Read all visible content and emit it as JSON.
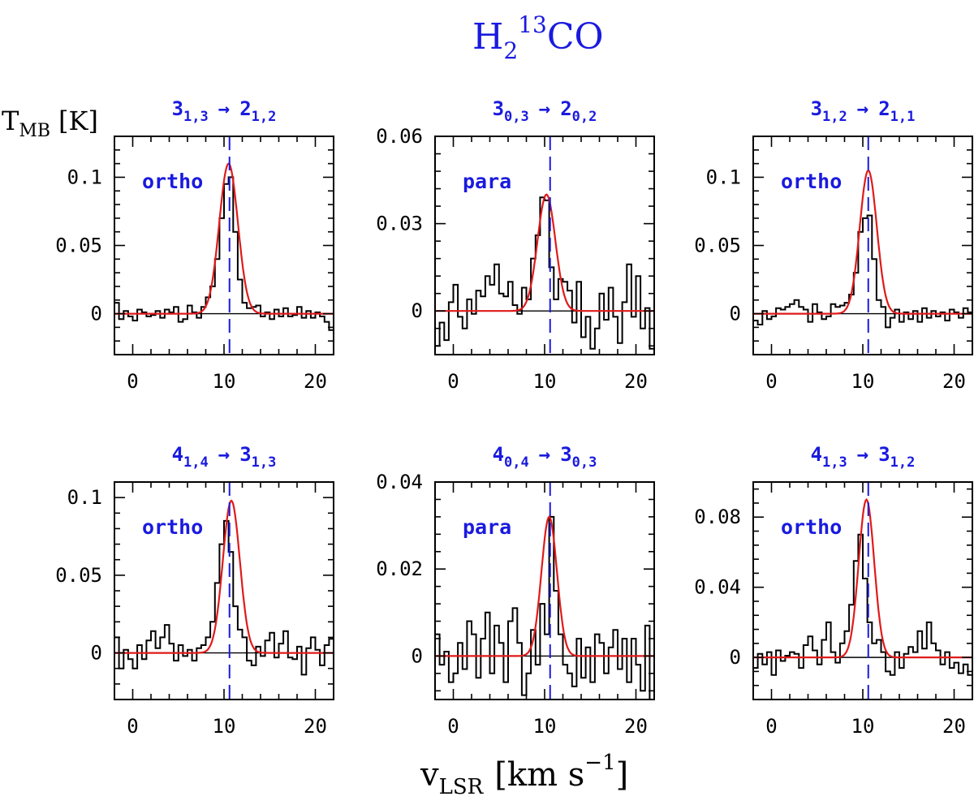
{
  "title": {
    "main": "H",
    "sub": "2",
    "sup": "13",
    "tail": "CO"
  },
  "ylabel": {
    "main": "T",
    "sub": "MB",
    "unit": "[K]"
  },
  "xlabel": {
    "main": "v",
    "sub": "LSR",
    "unit_a": "[km s",
    "sup": "−1",
    "unit_b": "]"
  },
  "colors": {
    "accent": "#1a1adf",
    "fit": "#e01a1a",
    "spectrum": "#000000"
  },
  "chart_data": [
    {
      "type": "line",
      "panel": "top-left",
      "transition": {
        "upper": "3",
        "upper_sub": "1,3",
        "arrow": "→",
        "lower": "2",
        "lower_sub": "1,2"
      },
      "species": "ortho",
      "xlim": [
        -2,
        22
      ],
      "ylim": [
        -0.03,
        0.13
      ],
      "xticks": [
        0,
        10,
        20
      ],
      "xtick_labels": [
        "0",
        "10",
        "20"
      ],
      "yticks": [
        0,
        0.05,
        0.1
      ],
      "ytick_labels": [
        "0",
        "0.05",
        "0.1"
      ],
      "vline": 10.6,
      "gaussian": {
        "amplitude": 0.11,
        "center": 10.5,
        "fwhm": 2.4
      },
      "x": [
        -2,
        -1.5,
        -1,
        -0.5,
        0,
        0.5,
        1,
        1.5,
        2,
        2.5,
        3,
        3.5,
        4,
        4.5,
        5,
        5.5,
        6,
        6.5,
        7,
        7.5,
        8,
        8.5,
        9,
        9.5,
        10,
        10.5,
        11,
        11.5,
        12,
        12.5,
        13,
        13.5,
        14,
        14.5,
        15,
        15.5,
        16,
        16.5,
        17,
        17.5,
        18,
        18.5,
        19,
        19.5,
        20,
        20.5,
        21,
        21.5
      ],
      "y": [
        0.008,
        -0.004,
        0.002,
        -0.002,
        -0.005,
        0.003,
        0.001,
        -0.002,
        -0.001,
        0.002,
        -0.003,
        0.003,
        0.001,
        0.005,
        -0.006,
        -0.004,
        0.006,
        0.001,
        -0.003,
        0.005,
        0.012,
        0.02,
        0.04,
        0.07,
        0.095,
        0.1,
        0.06,
        0.025,
        0.008,
        0.004,
        0.005,
        0.006,
        -0.002,
        0.001,
        -0.004,
        0.003,
        -0.002,
        0.004,
        -0.002,
        -0.001,
        0.005,
        -0.003,
        0.002,
        -0.003,
        0.001,
        -0.002,
        -0.006,
        -0.012
      ]
    },
    {
      "type": "line",
      "panel": "top-center",
      "transition": {
        "upper": "3",
        "upper_sub": "0,3",
        "arrow": "→",
        "lower": "2",
        "lower_sub": "0,2"
      },
      "species": "para",
      "xlim": [
        -2,
        22
      ],
      "ylim": [
        -0.015,
        0.06
      ],
      "xticks": [
        0,
        10,
        20
      ],
      "xtick_labels": [
        "0",
        "10",
        "20"
      ],
      "yticks": [
        0,
        0.03,
        0.06
      ],
      "ytick_labels": [
        "0",
        "0.03",
        "0.06"
      ],
      "vline": 10.6,
      "gaussian": {
        "amplitude": 0.04,
        "center": 10.2,
        "fwhm": 2.3
      },
      "x": [
        -2,
        -1.5,
        -1,
        -0.5,
        0,
        0.5,
        1,
        1.5,
        2,
        2.5,
        3,
        3.5,
        4,
        4.5,
        5,
        5.5,
        6,
        6.5,
        7,
        7.5,
        8,
        8.5,
        9,
        9.5,
        10,
        10.5,
        11,
        11.5,
        12,
        12.5,
        13,
        13.5,
        14,
        14.5,
        15,
        15.5,
        16,
        16.5,
        17,
        17.5,
        18,
        18.5,
        19,
        19.5,
        20,
        20.5,
        21,
        21.5
      ],
      "y": [
        -0.012,
        -0.004,
        -0.01,
        0.003,
        0.009,
        -0.002,
        -0.006,
        0.004,
        -0.001,
        0.007,
        0.005,
        0.012,
        0.009,
        0.016,
        0.006,
        0.005,
        0.01,
        0.002,
        -0.001,
        0.008,
        0.004,
        0.018,
        0.026,
        0.039,
        0.038,
        0.015,
        0.004,
        0.011,
        0.01,
        0.007,
        -0.004,
        0.01,
        -0.009,
        -0.002,
        -0.013,
        -0.006,
        0.006,
        -0.003,
        0.008,
        -0.002,
        -0.011,
        0.003,
        0.016,
        -0.002,
        0.012,
        -0.006,
        0.001,
        -0.013
      ]
    },
    {
      "type": "line",
      "panel": "top-right",
      "transition": {
        "upper": "3",
        "upper_sub": "1,2",
        "arrow": "→",
        "lower": "2",
        "lower_sub": "1,1"
      },
      "species": "ortho",
      "xlim": [
        -2,
        22
      ],
      "ylim": [
        -0.03,
        0.13
      ],
      "xticks": [
        0,
        10,
        20
      ],
      "xtick_labels": [
        "0",
        "10",
        "20"
      ],
      "yticks": [
        0,
        0.05,
        0.1
      ],
      "ytick_labels": [
        "0",
        "0.05",
        "0.1"
      ],
      "vline": 10.6,
      "gaussian": {
        "amplitude": 0.105,
        "center": 10.6,
        "fwhm": 2.2
      },
      "x": [
        -2,
        -1.5,
        -1,
        -0.5,
        0,
        0.5,
        1,
        1.5,
        2,
        2.5,
        3,
        3.5,
        4,
        4.5,
        5,
        5.5,
        6,
        6.5,
        7,
        7.5,
        8,
        8.5,
        9,
        9.5,
        10,
        10.5,
        11,
        11.5,
        12,
        12.5,
        13,
        13.5,
        14,
        14.5,
        15,
        15.5,
        16,
        16.5,
        17,
        17.5,
        18,
        18.5,
        19,
        19.5,
        20,
        20.5,
        21,
        21.5
      ],
      "y": [
        -0.005,
        -0.008,
        0.002,
        -0.004,
        -0.002,
        0.004,
        0.003,
        0.005,
        0.007,
        0.01,
        0.005,
        0.003,
        -0.006,
        0.007,
        0.001,
        -0.004,
        -0.002,
        0.007,
        0.005,
        0.006,
        0.008,
        0.014,
        0.03,
        0.06,
        0.07,
        0.072,
        0.04,
        0.01,
        0.005,
        -0.01,
        -0.003,
        0.003,
        -0.006,
        0.001,
        -0.004,
        0.002,
        -0.006,
        0.004,
        -0.003,
        0.002,
        -0.002,
        0.001,
        -0.005,
        0.003,
        0.001,
        -0.003,
        0.004,
        0.001
      ]
    },
    {
      "type": "line",
      "panel": "bottom-left",
      "transition": {
        "upper": "4",
        "upper_sub": "1,4",
        "arrow": "→",
        "lower": "3",
        "lower_sub": "1,3"
      },
      "species": "ortho",
      "xlim": [
        -2,
        22
      ],
      "ylim": [
        -0.03,
        0.11
      ],
      "xticks": [
        0,
        10,
        20
      ],
      "xtick_labels": [
        "0",
        "10",
        "20"
      ],
      "yticks": [
        0,
        0.05,
        0.1
      ],
      "ytick_labels": [
        "0",
        "0.05",
        "0.1"
      ],
      "vline": 10.6,
      "gaussian": {
        "amplitude": 0.098,
        "center": 10.8,
        "fwhm": 2.2
      },
      "x": [
        -2,
        -1.5,
        -1,
        -0.5,
        0,
        0.5,
        1,
        1.5,
        2,
        2.5,
        3,
        3.5,
        4,
        4.5,
        5,
        5.5,
        6,
        6.5,
        7,
        7.5,
        8,
        8.5,
        9,
        9.5,
        10,
        10.5,
        11,
        11.5,
        12,
        12.5,
        13,
        13.5,
        14,
        14.5,
        15,
        15.5,
        16,
        16.5,
        17,
        17.5,
        18,
        18.5,
        19,
        19.5,
        20,
        20.5,
        21,
        21.5
      ],
      "y": [
        0.01,
        -0.01,
        0.002,
        -0.004,
        -0.01,
        0.005,
        -0.004,
        0.008,
        0.014,
        0.003,
        0.01,
        0.018,
        0.006,
        -0.005,
        0.005,
        -0.002,
        0.002,
        -0.005,
        0.003,
        0.005,
        0.01,
        0.02,
        0.045,
        0.07,
        0.085,
        0.065,
        0.03,
        0.015,
        0.01,
        -0.005,
        -0.008,
        0.004,
        -0.002,
        0.008,
        0.013,
        -0.003,
        0.006,
        0.014,
        -0.003,
        -0.004,
        0.004,
        -0.014,
        0.003,
        0.01,
        0.002,
        -0.008,
        0.005,
        0.009
      ]
    },
    {
      "type": "line",
      "panel": "bottom-center",
      "transition": {
        "upper": "4",
        "upper_sub": "0,4",
        "arrow": "→",
        "lower": "3",
        "lower_sub": "0,3"
      },
      "species": "para",
      "xlim": [
        -2,
        22
      ],
      "ylim": [
        -0.01,
        0.04
      ],
      "xticks": [
        0,
        10,
        20
      ],
      "xtick_labels": [
        "0",
        "10",
        "20"
      ],
      "yticks": [
        0,
        0.02,
        0.04
      ],
      "ytick_labels": [
        "0",
        "0.02",
        "0.04"
      ],
      "vline": 10.6,
      "gaussian": {
        "amplitude": 0.032,
        "center": 10.5,
        "fwhm": 2.0
      },
      "x": [
        -2,
        -1.5,
        -1,
        -0.5,
        0,
        0.5,
        1,
        1.5,
        2,
        2.5,
        3,
        3.5,
        4,
        4.5,
        5,
        5.5,
        6,
        6.5,
        7,
        7.5,
        8,
        8.5,
        9,
        9.5,
        10,
        10.5,
        11,
        11.5,
        12,
        12.5,
        13,
        13.5,
        14,
        14.5,
        15,
        15.5,
        16,
        16.5,
        17,
        17.5,
        18,
        18.5,
        19,
        19.5,
        20,
        20.5,
        21,
        21.5
      ],
      "y": [
        0.005,
        -0.002,
        0.001,
        -0.006,
        -0.004,
        0.003,
        -0.003,
        0.008,
        0.005,
        -0.005,
        0.004,
        0.01,
        -0.004,
        0.007,
        0.003,
        -0.006,
        0.008,
        0.011,
        0.003,
        -0.009,
        -0.004,
        0.006,
        -0.002,
        0.012,
        0.005,
        0.032,
        0.015,
        0.005,
        -0.002,
        -0.004,
        -0.007,
        0.004,
        -0.005,
        0.002,
        -0.006,
        0.005,
        0.003,
        -0.004,
        0.002,
        0.006,
        -0.003,
        0.004,
        -0.006,
        0.004,
        -0.002,
        -0.008,
        0.007,
        -0.01
      ]
    },
    {
      "type": "line",
      "panel": "bottom-right",
      "transition": {
        "upper": "4",
        "upper_sub": "1,3",
        "arrow": "→",
        "lower": "3",
        "lower_sub": "1,2"
      },
      "species": "ortho",
      "xlim": [
        -2,
        22
      ],
      "ylim": [
        -0.024,
        0.1
      ],
      "xticks": [
        0,
        10,
        20
      ],
      "xtick_labels": [
        "0",
        "10",
        "20"
      ],
      "yticks": [
        0,
        0.04,
        0.08
      ],
      "ytick_labels": [
        "0",
        "0.04",
        "0.08"
      ],
      "vline": 10.6,
      "gaussian": {
        "amplitude": 0.09,
        "center": 10.4,
        "fwhm": 2.0
      },
      "x": [
        -2,
        -1.5,
        -1,
        -0.5,
        0,
        0.5,
        1,
        1.5,
        2,
        2.5,
        3,
        3.5,
        4,
        4.5,
        5,
        5.5,
        6,
        6.5,
        7,
        7.5,
        8,
        8.5,
        9,
        9.5,
        10,
        10.5,
        11,
        11.5,
        12,
        12.5,
        13,
        13.5,
        14,
        14.5,
        15,
        15.5,
        16,
        16.5,
        17,
        17.5,
        18,
        18.5,
        19,
        19.5,
        20,
        20.5,
        21,
        21.5
      ],
      "y": [
        -0.006,
        0.002,
        -0.004,
        0.003,
        -0.01,
        0.004,
        -0.002,
        0.001,
        0.003,
        0.002,
        -0.006,
        0.007,
        0.012,
        0.004,
        -0.004,
        0.01,
        0.02,
        0.003,
        -0.003,
        0.008,
        0.015,
        0.03,
        0.055,
        0.07,
        0.045,
        0.02,
        0.008,
        0.01,
        0.003,
        -0.008,
        -0.01,
        0.003,
        -0.006,
        0.002,
        0.006,
        0.003,
        0.015,
        0.005,
        0.02,
        0.008,
        0.004,
        -0.004,
        0.003,
        -0.006,
        -0.003,
        -0.009,
        -0.004,
        -0.01
      ]
    }
  ]
}
